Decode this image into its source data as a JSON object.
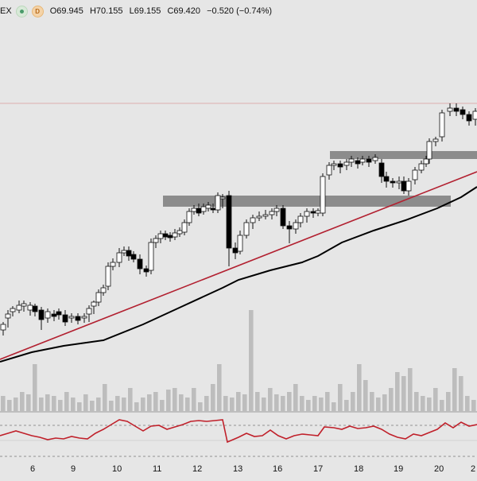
{
  "header": {
    "symbol": "EX",
    "badge_d": "D",
    "open": "O69.945",
    "high": "H70.155",
    "low": "L69.155",
    "close": "C69.420",
    "change": "−0.520 (−0.74%)"
  },
  "x_axis_labels": [
    "6",
    "9",
    "10",
    "11",
    "12",
    "13",
    "16",
    "17",
    "18",
    "19",
    "20",
    "2"
  ],
  "colors": {
    "background": "#e6e6e6",
    "candle_up": "#ffffff",
    "candle_down": "#000000",
    "trendline": "#b22030",
    "moving_average": "#000000",
    "zones": "#8c8c8c",
    "rsi_line": "#c0202a",
    "volume": "#bdbdbd"
  }
}
